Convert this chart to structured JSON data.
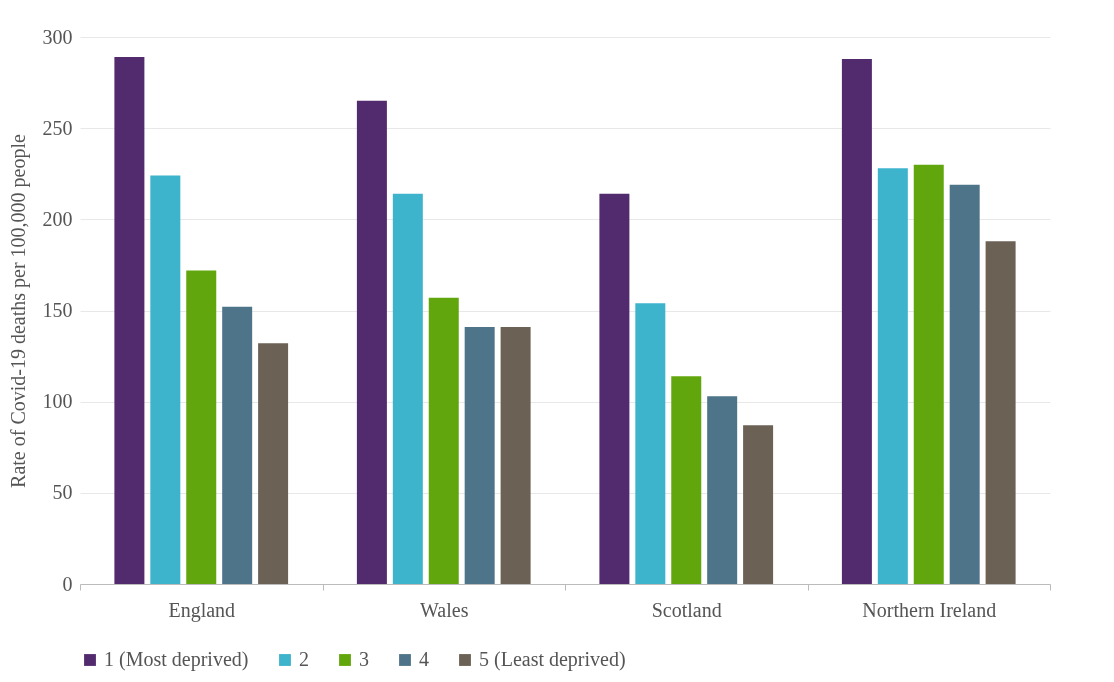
{
  "chart_data": {
    "type": "bar",
    "ylabel": "Rate of Covid-19 deaths per 100,000 people",
    "categories": [
      "England",
      "Wales",
      "Scotland",
      "Northern Ireland"
    ],
    "series": [
      {
        "name": "1 (Most deprived)",
        "color": "#522a6e",
        "values": [
          289,
          265,
          214,
          288
        ]
      },
      {
        "name": "2",
        "color": "#3db3cc",
        "values": [
          224,
          214,
          154,
          228
        ]
      },
      {
        "name": "3",
        "color": "#62a60d",
        "values": [
          172,
          157,
          114,
          230
        ]
      },
      {
        "name": "4",
        "color": "#4e7489",
        "values": [
          152,
          141,
          103,
          219
        ]
      },
      {
        "name": "5 (Least deprived)",
        "color": "#6b6155",
        "values": [
          132,
          141,
          87,
          188
        ]
      }
    ],
    "ylim": [
      0,
      300
    ],
    "yticks": [
      0,
      50,
      100,
      150,
      200,
      250,
      300
    ],
    "grid": "y",
    "legend": "bottom"
  }
}
